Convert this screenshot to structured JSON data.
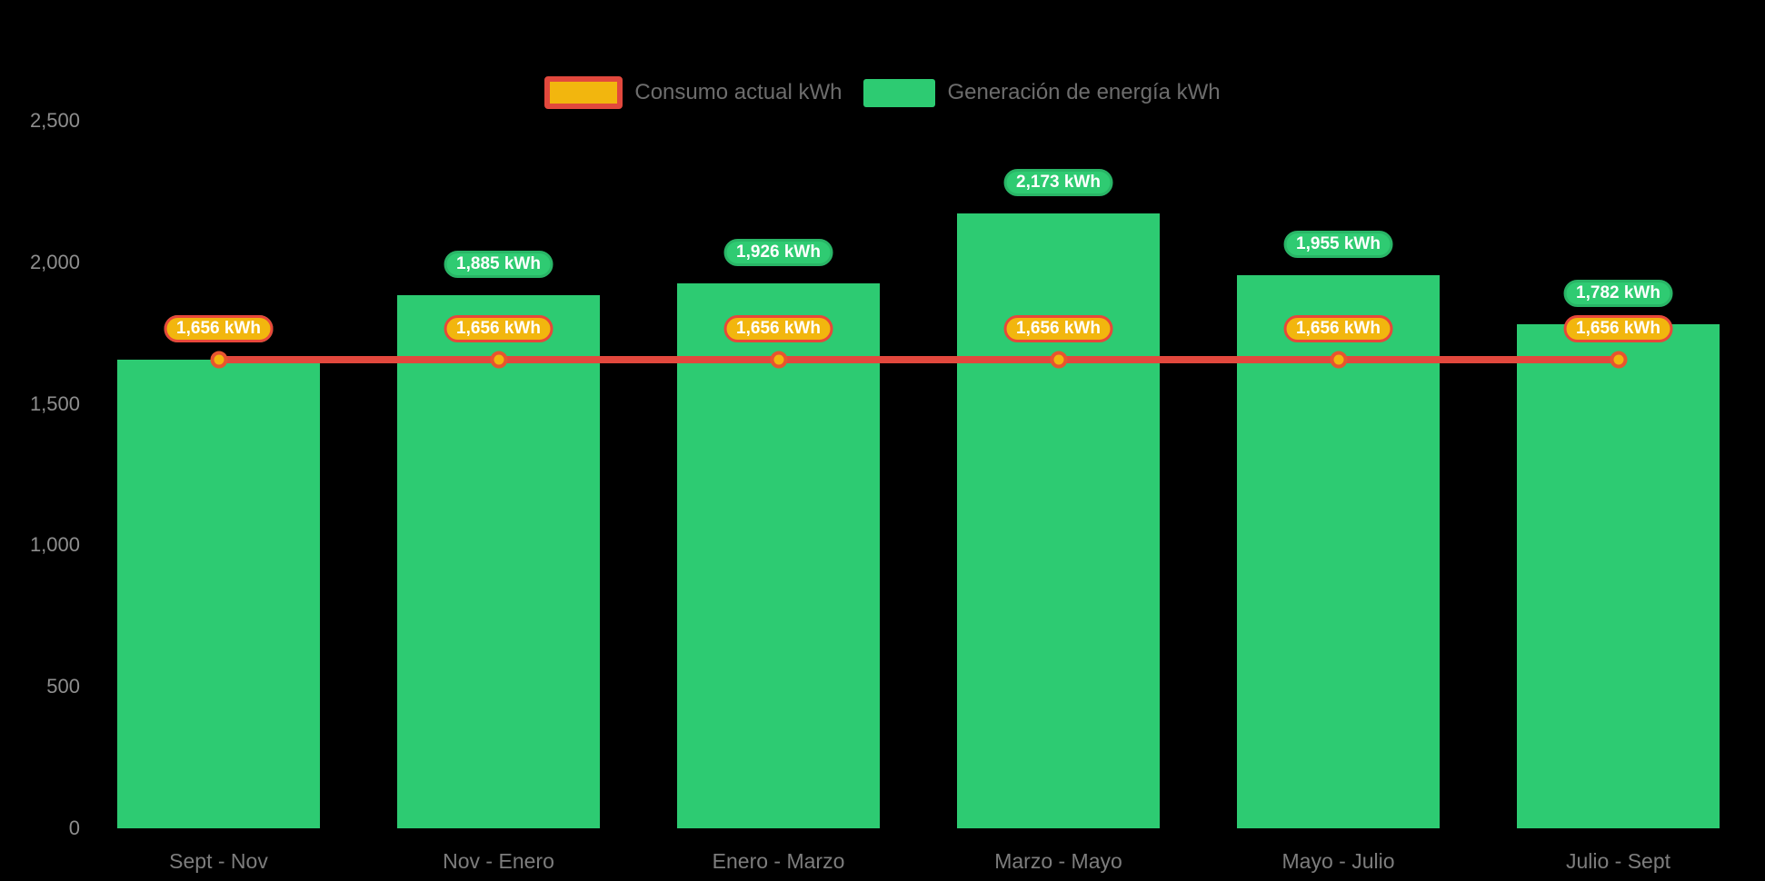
{
  "palette": {
    "background": "#000000",
    "axis_text": "#8e8e8e",
    "category_text": "#7d7d7d",
    "legend_text": "#6d6d6d",
    "badge_text": "#ffffff"
  },
  "legend": {
    "items": [
      {
        "label": "Consumo actual kWh"
      },
      {
        "label": "Generación de energía kWh"
      }
    ]
  },
  "chart_data": {
    "type": "bar",
    "title": "",
    "categories": [
      "Sept - Nov",
      "Nov - Enero",
      "Enero - Marzo",
      "Marzo - Mayo",
      "Mayo - Julio",
      "Julio - Sept"
    ],
    "series": [
      {
        "name": "Generación de energía kWh",
        "type": "bar",
        "color": "#2dcb72",
        "values": [
          1656,
          1885,
          1926,
          2173,
          1955,
          1782
        ],
        "value_labels": [
          "1,656 kWh",
          "1,885 kWh",
          "1,926 kWh",
          "2,173 kWh",
          "1,955 kWh",
          "1,782 kWh"
        ],
        "badge_fill": "#2fcb72",
        "badge_border": "#29b566"
      },
      {
        "name": "Consumo actual kWh",
        "type": "line",
        "color": "#e2483d",
        "values": [
          1656,
          1656,
          1656,
          1656,
          1656,
          1656
        ],
        "value_labels": [
          "1,656 kWh",
          "1,656 kWh",
          "1,656 kWh",
          "1,656 kWh",
          "1,656 kWh",
          "1,656 kWh"
        ],
        "badge_fill": "#f2b60e",
        "badge_border": "#e8473a",
        "marker_fill": "#f2b60e",
        "marker_border": "#e8542f"
      }
    ],
    "ylim": [
      0,
      2500
    ],
    "yticks": [
      0,
      500,
      1000,
      1500,
      2000,
      2500
    ],
    "ytick_labels": [
      "0",
      "500",
      "1,000",
      "1,500",
      "2,000",
      "2,500"
    ],
    "legend_position": "top",
    "grid": false
  }
}
